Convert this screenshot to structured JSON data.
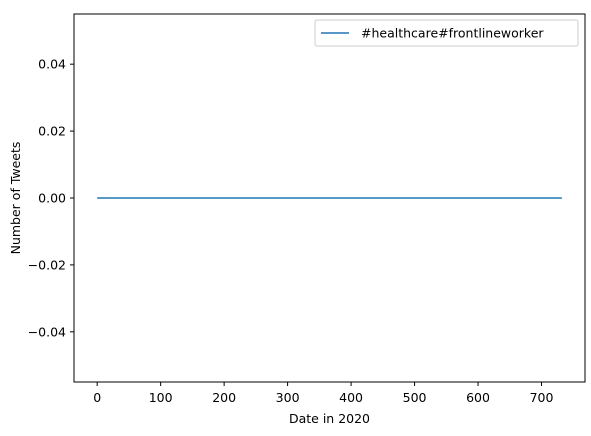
{
  "chart_data": {
    "type": "line",
    "title": "",
    "xlabel": "Date in 2020",
    "ylabel": "Number of Tweets",
    "xlim": [
      -36.5,
      768.5
    ],
    "ylim": [
      -0.055,
      0.055
    ],
    "x_ticks": [
      0,
      100,
      200,
      300,
      400,
      500,
      600,
      700
    ],
    "y_ticks": [
      -0.04,
      -0.02,
      0.0,
      0.02,
      0.04
    ],
    "x_tick_labels": [
      "0",
      "100",
      "200",
      "300",
      "400",
      "500",
      "600",
      "700"
    ],
    "y_tick_labels": [
      "−0.04",
      "−0.02",
      "0.00",
      "0.02",
      "0.04"
    ],
    "grid": false,
    "legend_position": "top-right",
    "series": [
      {
        "name": "#healthcare#frontlineworker",
        "color": "#1f77b4",
        "x": [
          0,
          732
        ],
        "y": [
          0,
          0
        ]
      }
    ]
  }
}
